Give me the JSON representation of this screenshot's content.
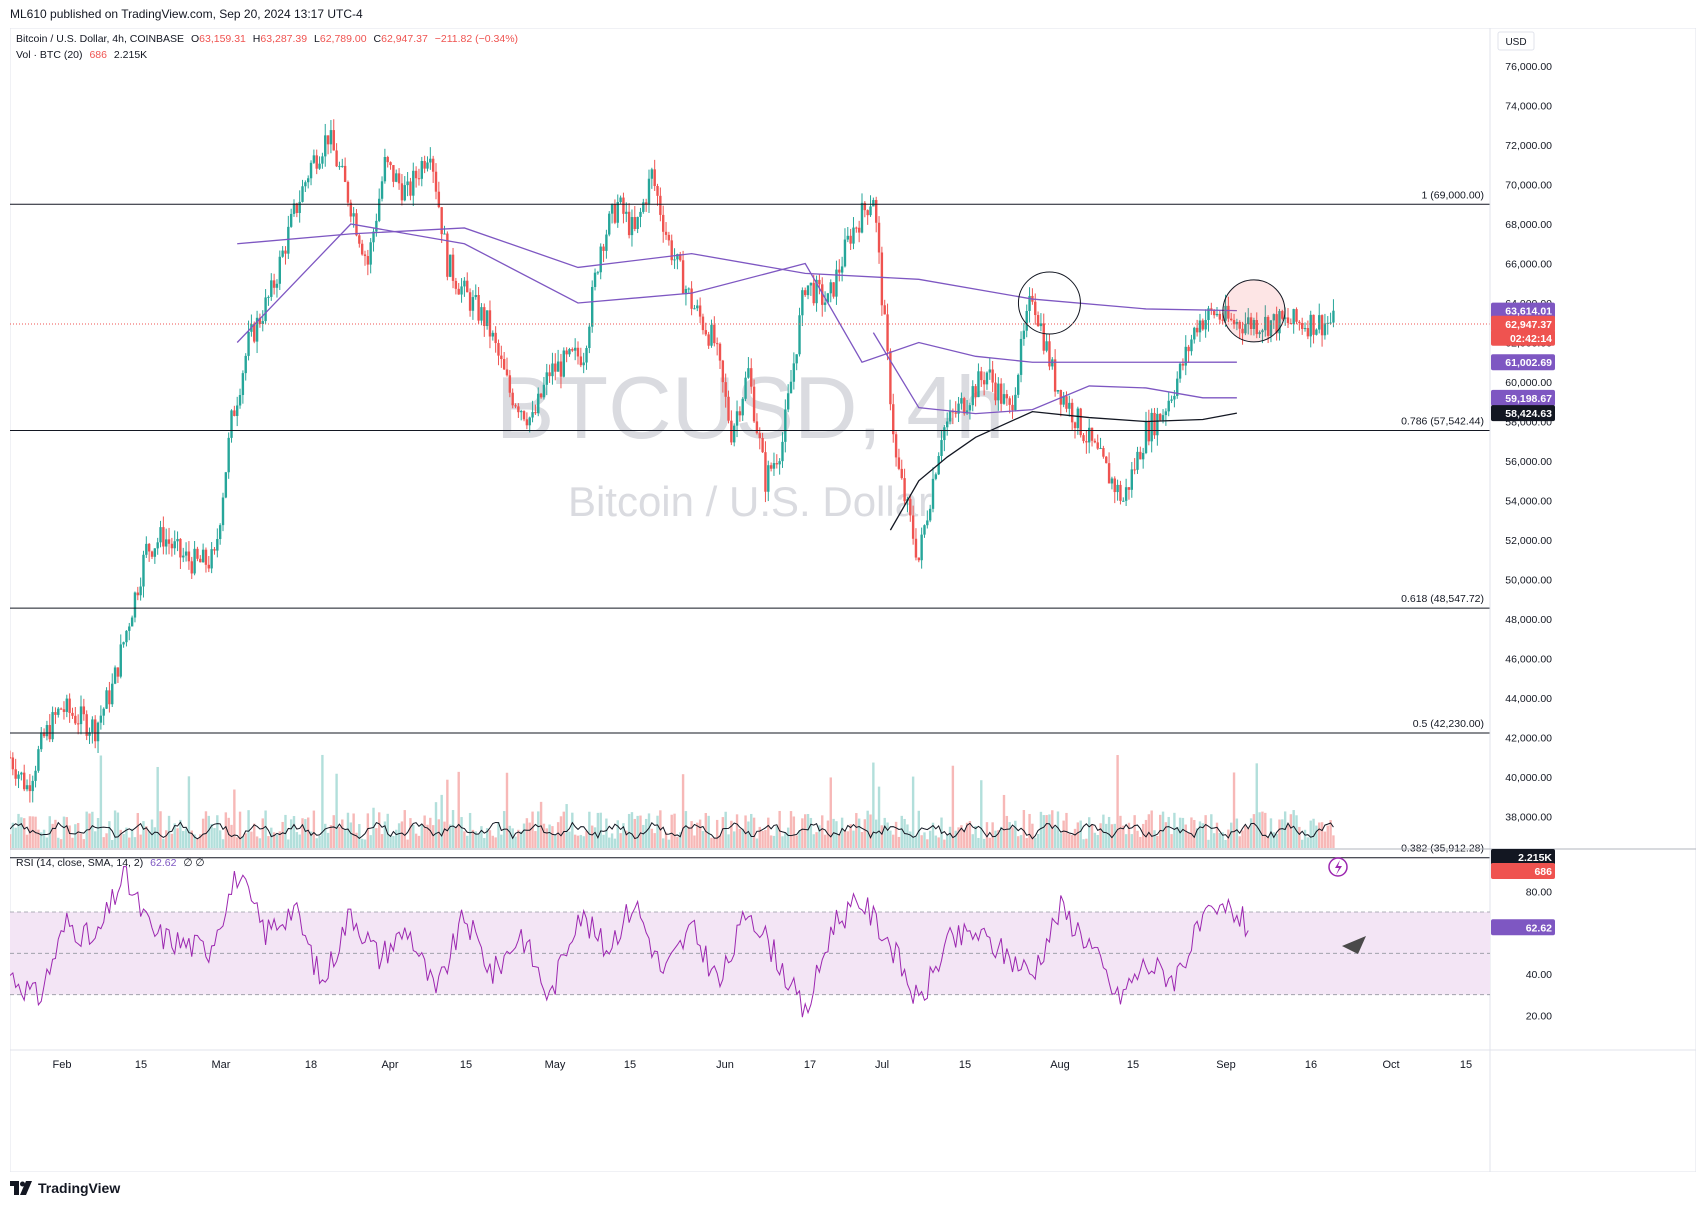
{
  "header": {
    "published": "ML610 published on TradingView.com, Sep 20, 2024 13:17 UTC-4"
  },
  "legend": {
    "symbol": "Bitcoin / U.S. Dollar, 4h, COINBASE",
    "ohlc": [
      {
        "k": "O",
        "v": "63,159.31"
      },
      {
        "k": "H",
        "v": "63,287.39"
      },
      {
        "k": "L",
        "v": "62,789.00"
      },
      {
        "k": "C",
        "v": "62,947.37"
      },
      {
        "k": "",
        "v": "−211.82 (−0.34%)"
      }
    ],
    "vol_label": "Vol · BTC (20)",
    "vol_val": "686",
    "vol_ma": "2.215K",
    "rsi_label": "RSI (14, close, SMA, 14, 2)",
    "rsi_val": "62.62",
    "rsi_extra": "∅ ∅"
  },
  "watermark": {
    "ticker": "BTCUSD, 4h",
    "name": "Bitcoin / U.S. Dollar"
  },
  "colors": {
    "up": "#26a69a",
    "down": "#ef5350",
    "ma_purple": "#7e57c2",
    "ma_black": "#131722",
    "rsi": "#9c27b0",
    "rsi_band": "#f3e5f5",
    "vol_up": "#b2dfdb",
    "vol_down": "#f7b8b7",
    "price_label": "#ef5350",
    "fib_line": "#131722"
  },
  "scale": {
    "currency": "USD"
  },
  "chart_data": [
    {
      "type": "line",
      "title": "Bitcoin / U.S. Dollar, 4h, COINBASE",
      "x_ticks": [
        "Feb",
        "15",
        "Mar",
        "18",
        "Apr",
        "15",
        "May",
        "15",
        "Jun",
        "17",
        "Jul",
        "15",
        "Aug",
        "15",
        "Sep",
        "16",
        "Oct",
        "15"
      ],
      "y_ticks": [
        "76,000.00",
        "74,000.00",
        "72,000.00",
        "70,000.00",
        "68,000.00",
        "66,000.00",
        "64,000.00",
        "62,000.00",
        "60,000.00",
        "58,000.00",
        "56,000.00",
        "54,000.00",
        "52,000.00",
        "50,000.00",
        "48,000.00",
        "46,000.00",
        "44,000.00",
        "42,000.00",
        "40,000.00",
        "38,000.00",
        "36,000.00"
      ],
      "ylim": [
        35000,
        77000
      ],
      "price_path": {
        "x_day": [
          0,
          3,
          6,
          9,
          12,
          15,
          18,
          21,
          24,
          27,
          30,
          33,
          36,
          39,
          42,
          46,
          50,
          53,
          56,
          60,
          63,
          66,
          70,
          74,
          77,
          80,
          84,
          88,
          92,
          95,
          98,
          101,
          104,
          107,
          110,
          113,
          116,
          120,
          124,
          127,
          130,
          133,
          136,
          140,
          144,
          148,
          152,
          156,
          160,
          164,
          168,
          172,
          176,
          180,
          184,
          188,
          192,
          196,
          200,
          203,
          206,
          209,
          212,
          215,
          218,
          221,
          224,
          227,
          230,
          233
        ],
        "y_price": [
          41000,
          39500,
          42000,
          43500,
          43000,
          42500,
          44500,
          48000,
          51500,
          52200,
          51200,
          50800,
          51000,
          58000,
          62000,
          64500,
          68500,
          71000,
          72500,
          69000,
          66000,
          71000,
          69500,
          72000,
          66000,
          64500,
          63000,
          59500,
          58000,
          60500,
          61000,
          61500,
          67000,
          69000,
          67500,
          70500,
          67000,
          64000,
          62000,
          57500,
          60500,
          55000,
          57000,
          65000,
          64000,
          67500,
          69500,
          56000,
          51000,
          57500,
          59000,
          60500,
          58500,
          64500,
          60000,
          58000,
          56000,
          54000,
          57500,
          58500,
          60500,
          63000,
          63500,
          63000,
          63000,
          63000,
          63000,
          63000,
          63000,
          63000
        ]
      },
      "ma_purple_slow": {
        "x_day": [
          40,
          60,
          80,
          100,
          120,
          140,
          160,
          180,
          200,
          216
        ],
        "y_price": [
          67000,
          67500,
          67800,
          65800,
          66500,
          65500,
          65200,
          64200,
          63700,
          63614.01
        ]
      },
      "ma_purple_mid": {
        "x_day": [
          40,
          60,
          80,
          100,
          120,
          140,
          150,
          160,
          170,
          180,
          200,
          216
        ],
        "y_price": [
          62000,
          68000,
          67000,
          64000,
          64500,
          66000,
          61000,
          62000,
          61300,
          61000,
          61000,
          61002.69
        ]
      },
      "ma_purple_fast": {
        "x_day": [
          152,
          160,
          170,
          180,
          190,
          200,
          210,
          216
        ],
        "y_price": [
          62500,
          58700,
          58400,
          58600,
          59800,
          59700,
          59200,
          59198.67
        ]
      },
      "ma_black": {
        "x_day": [
          155,
          160,
          165,
          170,
          180,
          190,
          200,
          210,
          216
        ],
        "y_price": [
          52500,
          55000,
          56200,
          57200,
          58500,
          58200,
          58000,
          58100,
          58424.63
        ]
      },
      "levels": [
        {
          "label": "1 (69,000.00)",
          "value": 69000
        },
        {
          "label": "0.786 (57,542.44)",
          "value": 57542.44
        },
        {
          "label": "0.618 (48,547.72)",
          "value": 48547.72
        },
        {
          "label": "0.5 (42,230.00)",
          "value": 42230
        },
        {
          "label": "0.382 (35,912.28)",
          "value": 35912.28
        }
      ],
      "price_labels": [
        {
          "text": "63,614.01",
          "value": 63614.01,
          "color": "#7e57c2"
        },
        {
          "text": "62,947.37",
          "value": 62947.37,
          "color": "#ef5350"
        },
        {
          "text": "02:42:14",
          "value": 62300,
          "color": "#ef5350"
        },
        {
          "text": "61,002.69",
          "value": 61002.69,
          "color": "#7e57c2"
        },
        {
          "text": "59,198.67",
          "value": 59198.67,
          "color": "#7e57c2"
        },
        {
          "text": "58,424.63",
          "value": 58424.63,
          "color": "#131722"
        }
      ],
      "circles": [
        {
          "x_day": 183,
          "value": 64000
        },
        {
          "x_day": 219,
          "value": 63600
        }
      ],
      "current_price": 62947.37
    },
    {
      "type": "bar",
      "title": "Vol · BTC (20)",
      "labels": [
        {
          "text": "2.215K",
          "color": "#131722"
        },
        {
          "text": "686",
          "color": "#ef5350"
        }
      ]
    },
    {
      "type": "line",
      "title": "RSI (14, close, SMA, 14, 2)",
      "y_ticks": [
        "80.00",
        "40.00",
        "20.00"
      ],
      "ylim": [
        10,
        100
      ],
      "band": [
        30,
        70
      ],
      "midline": 50,
      "last_value": 62.62,
      "rsi_path": {
        "x_day": [
          0,
          5,
          10,
          15,
          20,
          25,
          30,
          35,
          40,
          45,
          50,
          55,
          60,
          65,
          70,
          75,
          80,
          85,
          90,
          95,
          100,
          105,
          110,
          115,
          120,
          125,
          130,
          135,
          140,
          145,
          150,
          155,
          160,
          165,
          170,
          175,
          180,
          185,
          190,
          195,
          200,
          205,
          210,
          215,
          218
        ],
        "y_value": [
          40,
          28,
          65,
          55,
          88,
          60,
          55,
          52,
          88,
          60,
          72,
          35,
          70,
          48,
          62,
          30,
          68,
          40,
          60,
          28,
          70,
          52,
          75,
          40,
          62,
          35,
          72,
          48,
          20,
          65,
          75,
          55,
          25,
          55,
          60,
          50,
          40,
          72,
          55,
          28,
          45,
          38,
          65,
          72,
          62.62
        ]
      }
    }
  ]
}
